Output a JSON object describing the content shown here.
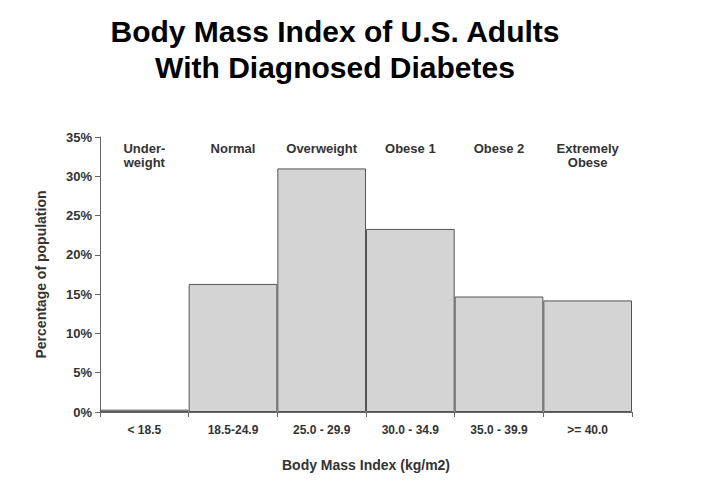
{
  "chart_data": {
    "type": "bar",
    "title": "Body Mass Index of U.S. Adults\nWith Diagnosed Diabetes",
    "x_label": "Body Mass Index (kg/m2)",
    "y_label": "Percentage of population",
    "categories": [
      "< 18.5",
      "18.5-24.9",
      "25.0 - 29.9",
      "30.0 - 34.9",
      "35.0 - 39.9",
      ">= 40.0"
    ],
    "group_labels": [
      "Under-\nweight",
      "Normal",
      "Overweight",
      "Obese 1",
      "Obese 2",
      "Extremely\nObese"
    ],
    "values": [
      0.3,
      16.3,
      31.0,
      23.3,
      14.7,
      14.2
    ],
    "color": "#d4d4d4",
    "ylim": [
      0,
      35
    ],
    "yticks": [
      {
        "value": 0,
        "label": "0%"
      },
      {
        "value": 5,
        "label": "5%"
      },
      {
        "value": 10,
        "label": "10%"
      },
      {
        "value": 15,
        "label": "15%"
      },
      {
        "value": 20,
        "label": "20%"
      },
      {
        "value": 25,
        "label": "25%"
      },
      {
        "value": 30,
        "label": "30%"
      },
      {
        "value": 35,
        "label": "35%"
      }
    ],
    "grid": false
  }
}
